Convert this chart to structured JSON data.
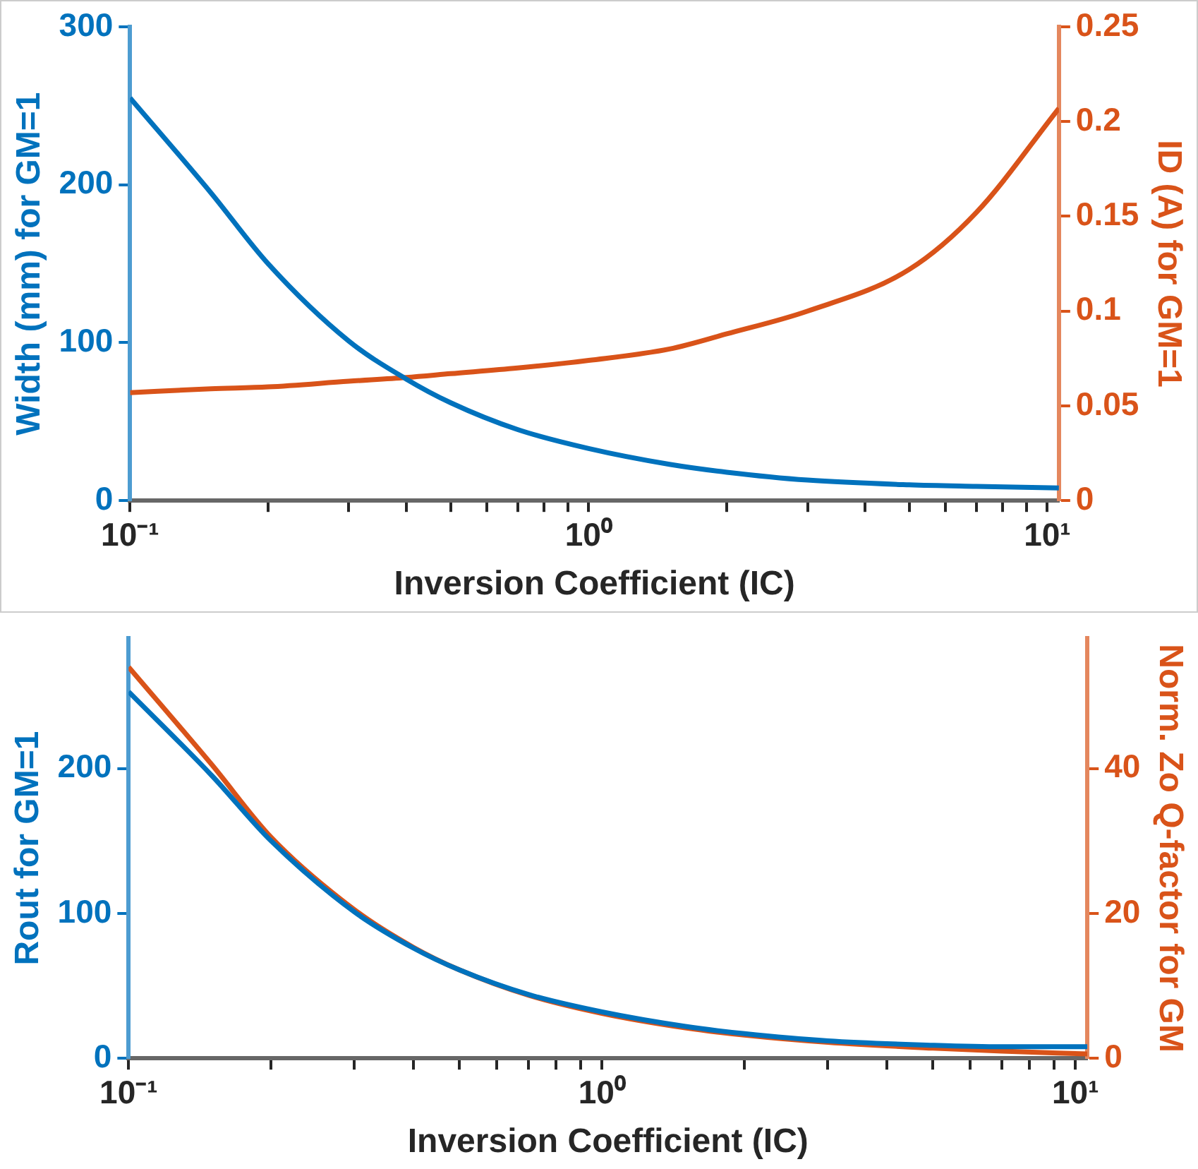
{
  "chart_data": [
    {
      "type": "line",
      "xlabel": "Inversion Coefficient (IC)",
      "ylabel": "Width (mm) for GM=1",
      "y2label": "ID (A) for GM=1",
      "log": "x",
      "grid": false,
      "legend": false,
      "marker": "none",
      "line_style": "solid",
      "x": [
        0.1,
        0.15,
        0.2,
        0.3,
        0.4,
        0.5,
        0.7,
        1,
        1.5,
        2,
        3,
        5,
        7,
        10.6
      ],
      "series": [
        {
          "color": "#0072bd",
          "axis": "y",
          "values": [
            255,
            195,
            150,
            101,
            77,
            62,
            45,
            33,
            23,
            18,
            13,
            10,
            9,
            8
          ]
        },
        {
          "color": "#d95319",
          "axis": "y2",
          "values": [
            0.057,
            0.059,
            0.06,
            0.063,
            0.065,
            0.067,
            0.07,
            0.074,
            0.08,
            0.088,
            0.1,
            0.122,
            0.152,
            0.207
          ]
        }
      ],
      "xlim": [
        0.1,
        10.6
      ],
      "xticks": [
        {
          "value": 0.1,
          "label": "10⁻¹"
        },
        {
          "value": 0.2,
          "label": null
        },
        {
          "value": 0.3,
          "label": null
        },
        {
          "value": 0.4,
          "label": null
        },
        {
          "value": 0.5,
          "label": null
        },
        {
          "value": 0.6,
          "label": null
        },
        {
          "value": 0.7,
          "label": null
        },
        {
          "value": 0.8,
          "label": null
        },
        {
          "value": 0.9,
          "label": null
        },
        {
          "value": 1,
          "label": "10⁰"
        },
        {
          "value": 2,
          "label": null
        },
        {
          "value": 3,
          "label": null
        },
        {
          "value": 4,
          "label": null
        },
        {
          "value": 5,
          "label": null
        },
        {
          "value": 6,
          "label": null
        },
        {
          "value": 7,
          "label": null
        },
        {
          "value": 8,
          "label": null
        },
        {
          "value": 9,
          "label": null
        },
        {
          "value": 10,
          "label": "10¹"
        }
      ],
      "ylim": [
        0,
        300
      ],
      "yticks": [
        0,
        100,
        200,
        300
      ],
      "y2lim": [
        0,
        0.25
      ],
      "y2ticks": [
        0,
        0.05,
        0.1,
        0.15,
        0.2,
        0.25
      ]
    },
    {
      "type": "line",
      "xlabel": "Inversion Coefficient (IC)",
      "ylabel": "Rout for GM=1",
      "y2label": "Norm. Zo Q-factor for GM",
      "log": "x",
      "grid": false,
      "legend": false,
      "marker": "none",
      "line_style": "solid",
      "x": [
        0.1,
        0.15,
        0.2,
        0.3,
        0.4,
        0.5,
        0.7,
        1,
        1.5,
        2,
        3,
        5,
        7,
        10.6
      ],
      "series": [
        {
          "color": "#0072bd",
          "axis": "y",
          "values": [
            253,
            195,
            150,
            101,
            76,
            61,
            44,
            32,
            22,
            17,
            12,
            9,
            8,
            8
          ]
        },
        {
          "color": "#d95319",
          "axis": "y2",
          "values": [
            54,
            40.5,
            30.5,
            20.5,
            15.3,
            12.2,
            8.7,
            6.2,
            4.2,
            3.2,
            2.2,
            1.4,
            1,
            0.6
          ]
        }
      ],
      "xlim": [
        0.1,
        10.6
      ],
      "xticks": [
        {
          "value": 0.1,
          "label": "10⁻¹"
        },
        {
          "value": 0.2,
          "label": null
        },
        {
          "value": 0.3,
          "label": null
        },
        {
          "value": 0.4,
          "label": null
        },
        {
          "value": 0.5,
          "label": null
        },
        {
          "value": 0.6,
          "label": null
        },
        {
          "value": 0.7,
          "label": null
        },
        {
          "value": 0.8,
          "label": null
        },
        {
          "value": 0.9,
          "label": null
        },
        {
          "value": 1,
          "label": "10⁰"
        },
        {
          "value": 2,
          "label": null
        },
        {
          "value": 3,
          "label": null
        },
        {
          "value": 4,
          "label": null
        },
        {
          "value": 5,
          "label": null
        },
        {
          "value": 6,
          "label": null
        },
        {
          "value": 7,
          "label": null
        },
        {
          "value": 8,
          "label": null
        },
        {
          "value": 9,
          "label": null
        },
        {
          "value": 10,
          "label": "10¹"
        }
      ],
      "ylim": [
        0,
        290
      ],
      "yticks": [
        0,
        100,
        200
      ],
      "y2lim": [
        0,
        58
      ],
      "y2ticks": [
        0,
        20,
        40
      ]
    }
  ]
}
